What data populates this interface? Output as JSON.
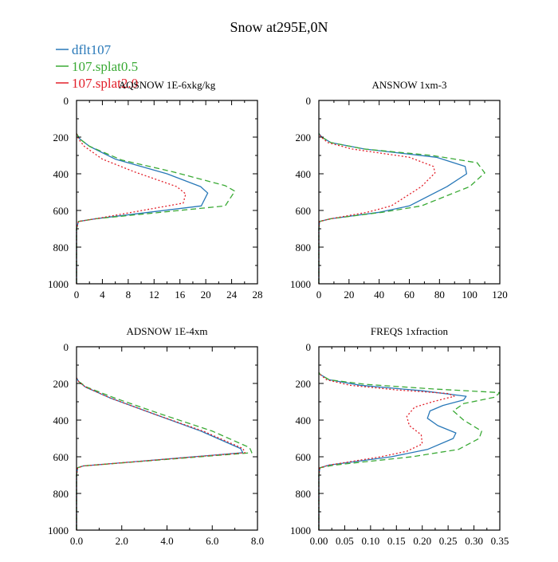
{
  "title": "Snow at295E,0N",
  "colors": {
    "dflt107": "#2878b8",
    "splat05": "#3aaa35",
    "splat20": "#e2202a"
  },
  "legend": [
    {
      "label": "dflt107",
      "key": "dflt107",
      "dash": ""
    },
    {
      "label": "107.splat0.5",
      "key": "splat05",
      "dash": "7,4"
    },
    {
      "label": "107.splat2.0",
      "key": "splat20",
      "dash": "2,2.5"
    }
  ],
  "chart_data": [
    {
      "type": "line",
      "title": "AQSNOW  1E-6xkg/kg",
      "xlim": [
        0,
        28
      ],
      "ylim": [
        1000,
        0
      ],
      "xticks": [
        0,
        4,
        8,
        12,
        16,
        20,
        24,
        28
      ],
      "xticklabels": [
        "0",
        "4",
        "8",
        "12",
        "16",
        "20",
        "24",
        "28"
      ],
      "yticks": [
        0,
        200,
        400,
        600,
        800,
        1000
      ],
      "yticklabels": [
        "0",
        "200",
        "400",
        "600",
        "800",
        "1000"
      ],
      "series": [
        {
          "name": "dflt107",
          "points": [
            [
              0,
              1000
            ],
            [
              0,
              700
            ],
            [
              0.3,
              660
            ],
            [
              3,
              645
            ],
            [
              19.3,
              575
            ],
            [
              20.3,
              505
            ],
            [
              19.2,
              470
            ],
            [
              14,
              400
            ],
            [
              6,
              320
            ],
            [
              2,
              250
            ],
            [
              0.5,
              210
            ],
            [
              0,
              180
            ]
          ]
        },
        {
          "name": "107.splat0.5",
          "points": [
            [
              0,
              1000
            ],
            [
              0,
              700
            ],
            [
              0.3,
              660
            ],
            [
              3,
              645
            ],
            [
              23,
              575
            ],
            [
              24.5,
              495
            ],
            [
              23,
              465
            ],
            [
              15,
              390
            ],
            [
              7,
              325
            ],
            [
              2,
              250
            ],
            [
              0.5,
              210
            ],
            [
              0,
              180
            ]
          ]
        },
        {
          "name": "107.splat2.0",
          "points": [
            [
              0,
              1000
            ],
            [
              0,
              700
            ],
            [
              0.3,
              660
            ],
            [
              3,
              645
            ],
            [
              16.5,
              560
            ],
            [
              16.9,
              510
            ],
            [
              15.5,
              470
            ],
            [
              9,
              390
            ],
            [
              4,
              320
            ],
            [
              1.2,
              250
            ],
            [
              0.3,
              210
            ],
            [
              0,
              180
            ]
          ]
        }
      ]
    },
    {
      "type": "line",
      "title": "ANSNOW  1xm-3",
      "xlim": [
        0,
        120
      ],
      "ylim": [
        1000,
        0
      ],
      "xticks": [
        0,
        20,
        40,
        60,
        80,
        100,
        120
      ],
      "xticklabels": [
        "0",
        "20",
        "40",
        "60",
        "80",
        "100",
        "120"
      ],
      "yticks": [
        0,
        200,
        400,
        600,
        800,
        1000
      ],
      "yticklabels": [
        "0",
        "200",
        "400",
        "600",
        "800",
        "1000"
      ],
      "series": [
        {
          "name": "dflt107",
          "points": [
            [
              0,
              1000
            ],
            [
              0,
              700
            ],
            [
              0.5,
              660
            ],
            [
              8,
              645
            ],
            [
              40,
              610
            ],
            [
              60,
              575
            ],
            [
              85,
              470
            ],
            [
              98,
              400
            ],
            [
              97,
              360
            ],
            [
              78,
              310
            ],
            [
              30,
              265
            ],
            [
              8,
              230
            ],
            [
              2,
              200
            ],
            [
              0,
              180
            ]
          ]
        },
        {
          "name": "107.splat0.5",
          "points": [
            [
              0,
              1000
            ],
            [
              0,
              700
            ],
            [
              0.5,
              660
            ],
            [
              8,
              645
            ],
            [
              42,
              610
            ],
            [
              68,
              575
            ],
            [
              100,
              470
            ],
            [
              110,
              395
            ],
            [
              105,
              340
            ],
            [
              75,
              300
            ],
            [
              30,
              265
            ],
            [
              8,
              230
            ],
            [
              2,
              200
            ],
            [
              0,
              180
            ]
          ]
        },
        {
          "name": "107.splat2.0",
          "points": [
            [
              0,
              1000
            ],
            [
              0,
              700
            ],
            [
              0.5,
              660
            ],
            [
              8,
              645
            ],
            [
              32,
              610
            ],
            [
              48,
              575
            ],
            [
              68,
              470
            ],
            [
              77,
              395
            ],
            [
              76,
              360
            ],
            [
              60,
              310
            ],
            [
              22,
              265
            ],
            [
              6,
              230
            ],
            [
              1.5,
              200
            ],
            [
              0,
              180
            ]
          ]
        }
      ]
    },
    {
      "type": "line",
      "title": "ADSNOW  1E-4xm",
      "xlim": [
        0,
        8
      ],
      "ylim": [
        1000,
        0
      ],
      "xticks": [
        0,
        2,
        4,
        6,
        8
      ],
      "xticklabels": [
        "0.0",
        "2.0",
        "4.0",
        "6.0",
        "8.0"
      ],
      "yticks": [
        0,
        200,
        400,
        600,
        800,
        1000
      ],
      "yticklabels": [
        "0",
        "200",
        "400",
        "600",
        "800",
        "1000"
      ],
      "series": [
        {
          "name": "dflt107",
          "points": [
            [
              0,
              1000
            ],
            [
              0,
              700
            ],
            [
              0.05,
              660
            ],
            [
              0.3,
              650
            ],
            [
              7.35,
              578
            ],
            [
              7.25,
              555
            ],
            [
              5.5,
              460
            ],
            [
              3.5,
              370
            ],
            [
              1.5,
              280
            ],
            [
              0.4,
              220
            ],
            [
              0.1,
              190
            ],
            [
              0,
              170
            ]
          ]
        },
        {
          "name": "107.splat0.5",
          "points": [
            [
              0,
              1000
            ],
            [
              0,
              700
            ],
            [
              0.05,
              660
            ],
            [
              0.3,
              650
            ],
            [
              7.75,
              578
            ],
            [
              7.65,
              550
            ],
            [
              6,
              460
            ],
            [
              3.8,
              370
            ],
            [
              1.7,
              280
            ],
            [
              0.45,
              220
            ],
            [
              0.1,
              190
            ],
            [
              0,
              170
            ]
          ]
        },
        {
          "name": "107.splat2.0",
          "points": [
            [
              0,
              1000
            ],
            [
              0,
              700
            ],
            [
              0.05,
              660
            ],
            [
              0.3,
              650
            ],
            [
              7.45,
              578
            ],
            [
              7.35,
              555
            ],
            [
              5.6,
              460
            ],
            [
              3.5,
              370
            ],
            [
              1.5,
              280
            ],
            [
              0.4,
              220
            ],
            [
              0.1,
              190
            ],
            [
              0,
              170
            ]
          ]
        }
      ]
    },
    {
      "type": "line",
      "title": "FREQS  1xfraction",
      "xlim": [
        0,
        0.35
      ],
      "ylim": [
        1000,
        0
      ],
      "xticks": [
        0,
        0.05,
        0.1,
        0.15,
        0.2,
        0.25,
        0.3,
        0.35
      ],
      "xticklabels": [
        "0.00",
        "0.05",
        "0.10",
        "0.15",
        "0.20",
        "0.25",
        "0.30",
        "0.35"
      ],
      "yticks": [
        0,
        200,
        400,
        600,
        800,
        1000
      ],
      "yticklabels": [
        "0",
        "200",
        "400",
        "600",
        "800",
        "1000"
      ],
      "series": [
        {
          "name": "dflt107",
          "points": [
            [
              0,
              1000
            ],
            [
              0,
              700
            ],
            [
              0.002,
              660
            ],
            [
              0.02,
              645
            ],
            [
              0.14,
              600
            ],
            [
              0.21,
              560
            ],
            [
              0.26,
              500
            ],
            [
              0.265,
              470
            ],
            [
              0.23,
              430
            ],
            [
              0.21,
              390
            ],
            [
              0.215,
              350
            ],
            [
              0.24,
              320
            ],
            [
              0.28,
              290
            ],
            [
              0.285,
              270
            ],
            [
              0.2,
              240
            ],
            [
              0.08,
              210
            ],
            [
              0.02,
              180
            ],
            [
              0.002,
              150
            ],
            [
              0,
              140
            ]
          ]
        },
        {
          "name": "107.splat0.5",
          "points": [
            [
              0,
              1000
            ],
            [
              0,
              700
            ],
            [
              0.002,
              660
            ],
            [
              0.03,
              645
            ],
            [
              0.18,
              600
            ],
            [
              0.27,
              560
            ],
            [
              0.31,
              500
            ],
            [
              0.315,
              460
            ],
            [
              0.28,
              400
            ],
            [
              0.26,
              350
            ],
            [
              0.28,
              310
            ],
            [
              0.34,
              275
            ],
            [
              0.35,
              250
            ],
            [
              0.22,
              230
            ],
            [
              0.09,
              205
            ],
            [
              0.02,
              180
            ],
            [
              0.002,
              150
            ],
            [
              0,
              140
            ]
          ]
        },
        {
          "name": "107.splat2.0",
          "points": [
            [
              0,
              1000
            ],
            [
              0,
              700
            ],
            [
              0.002,
              660
            ],
            [
              0.02,
              645
            ],
            [
              0.12,
              600
            ],
            [
              0.17,
              570
            ],
            [
              0.2,
              530
            ],
            [
              0.198,
              480
            ],
            [
              0.175,
              430
            ],
            [
              0.17,
              380
            ],
            [
              0.185,
              330
            ],
            [
              0.22,
              300
            ],
            [
              0.262,
              270
            ],
            [
              0.25,
              255
            ],
            [
              0.15,
              235
            ],
            [
              0.06,
              210
            ],
            [
              0.015,
              180
            ],
            [
              0.002,
              150
            ],
            [
              0,
              140
            ]
          ]
        }
      ]
    }
  ]
}
